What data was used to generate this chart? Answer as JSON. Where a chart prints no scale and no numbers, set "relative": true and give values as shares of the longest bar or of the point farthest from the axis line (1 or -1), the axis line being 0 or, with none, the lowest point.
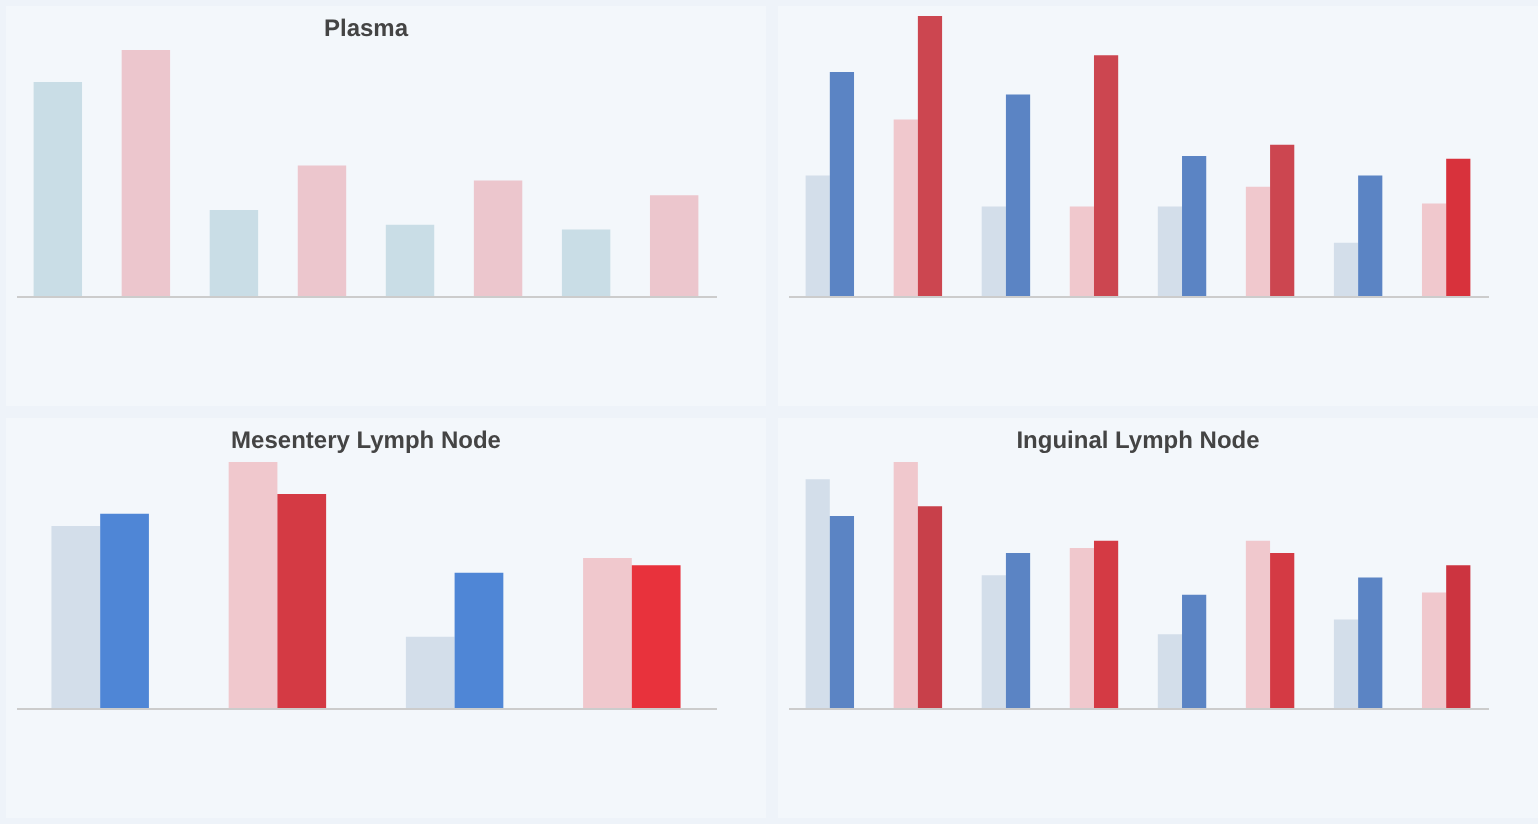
{
  "chart_data": [
    {
      "type": "bar",
      "title": "Plasma",
      "relative": true,
      "categories": [
        null,
        null,
        null,
        null,
        null,
        null,
        null,
        null
      ],
      "series": [
        {
          "colors": [
            "#c9dde6",
            "#ecc6cd",
            "#c9dde6",
            "#ecc6cd",
            "#c9dde6",
            "#ecc6cd",
            "#c9dde6",
            "#ecc6cd"
          ],
          "values": [
            0.87,
            1,
            0.35,
            0.53,
            0.29,
            0.47,
            0.27,
            0.41
          ]
        }
      ]
    },
    {
      "type": "bar",
      "relative": true,
      "categories": [
        null,
        null,
        null,
        null,
        null,
        null,
        null,
        null
      ],
      "series": [
        {
          "colors": [
            "#d3deea",
            "#f0c8cd",
            "#d3deea",
            "#f0c8cd",
            "#d3deea",
            "#f0c8cd",
            "#d3deea",
            "#f0c8cd"
          ],
          "values": [
            0.43,
            0.63,
            0.32,
            0.32,
            0.32,
            0.39,
            0.19,
            0.33
          ]
        },
        {
          "colors": [
            "#5b84c4",
            "#cc4650",
            "#5b84c4",
            "#cc4650",
            "#5b84c4",
            "#cc4650",
            "#5b84c4",
            "#d8323c"
          ],
          "values": [
            0.8,
            1,
            0.72,
            0.86,
            0.5,
            0.54,
            0.43,
            0.49
          ]
        }
      ]
    },
    {
      "type": "bar",
      "title": "Mesentery Lymph Node",
      "relative": true,
      "categories": [
        null,
        null,
        null,
        null
      ],
      "series": [
        {
          "colors": [
            "#d3deea",
            "#f0c8cd",
            "#d3deea",
            "#f0c8cd"
          ],
          "values": [
            0.74,
            1,
            0.29,
            0.61
          ]
        },
        {
          "colors": [
            "#4f86d6",
            "#d43a44",
            "#4f86d6",
            "#e8323c"
          ],
          "values": [
            0.79,
            0.87,
            0.55,
            0.58
          ]
        }
      ]
    },
    {
      "type": "bar",
      "title": "Inguinal Lymph Node",
      "relative": true,
      "categories": [
        null,
        null,
        null,
        null,
        null,
        null,
        null,
        null
      ],
      "series": [
        {
          "colors": [
            "#d3deea",
            "#f0c8cd",
            "#d3deea",
            "#f0c8cd",
            "#d3deea",
            "#f0c8cd",
            "#d3deea",
            "#f0c8cd"
          ],
          "values": [
            0.93,
            1,
            0.54,
            0.65,
            0.3,
            0.68,
            0.36,
            0.47
          ]
        },
        {
          "colors": [
            "#5b84c4",
            "#c8404a",
            "#5b84c4",
            "#d43a44",
            "#5b84c4",
            "#d43a44",
            "#5b84c4",
            "#cc3440"
          ],
          "values": [
            0.78,
            0.82,
            0.63,
            0.68,
            0.46,
            0.63,
            0.53,
            0.58
          ]
        }
      ]
    }
  ]
}
